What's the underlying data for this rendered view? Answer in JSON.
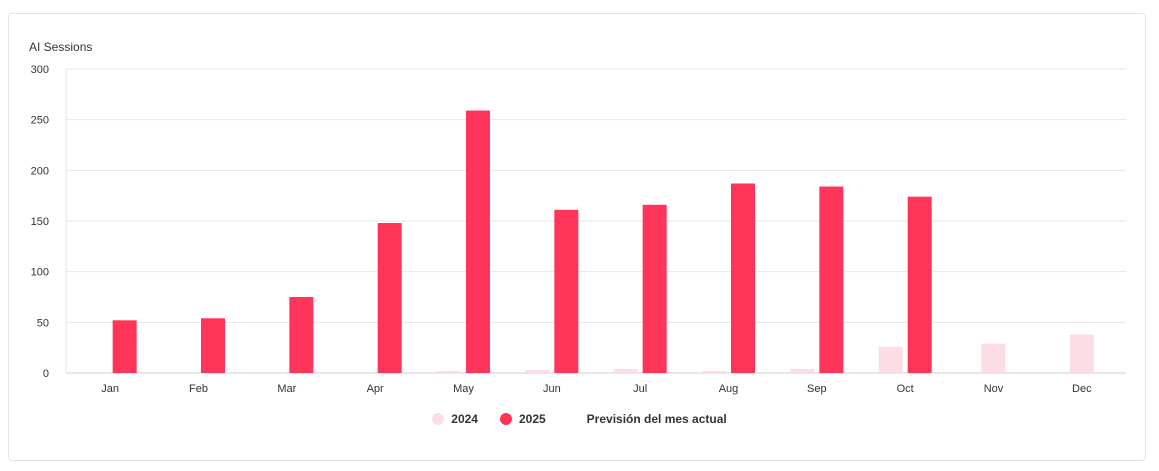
{
  "chart_data": {
    "type": "bar",
    "ylabel": "AI Sessions",
    "ylim": [
      0,
      300
    ],
    "yticks": [
      0,
      50,
      100,
      150,
      200,
      250,
      300
    ],
    "categories": [
      "Jan",
      "Feb",
      "Mar",
      "Apr",
      "May",
      "Jun",
      "Jul",
      "Aug",
      "Sep",
      "Oct",
      "Nov",
      "Dec"
    ],
    "series": [
      {
        "name": "2024",
        "color": "#fcdde3",
        "values": [
          0,
          0,
          0,
          0,
          2,
          3,
          4,
          2,
          4,
          26,
          29,
          38
        ]
      },
      {
        "name": "2025",
        "color": "#ff3459",
        "values": [
          52,
          54,
          75,
          148,
          259,
          161,
          166,
          187,
          184,
          174,
          null,
          null
        ]
      }
    ],
    "grid": true,
    "legend_position": "bottom-center"
  },
  "legend": {
    "items": [
      {
        "label": "2024",
        "color": "#fcdde3"
      },
      {
        "label": "2025",
        "color": "#ff3459"
      }
    ],
    "forecast_label": "Previsión del mes actual"
  }
}
